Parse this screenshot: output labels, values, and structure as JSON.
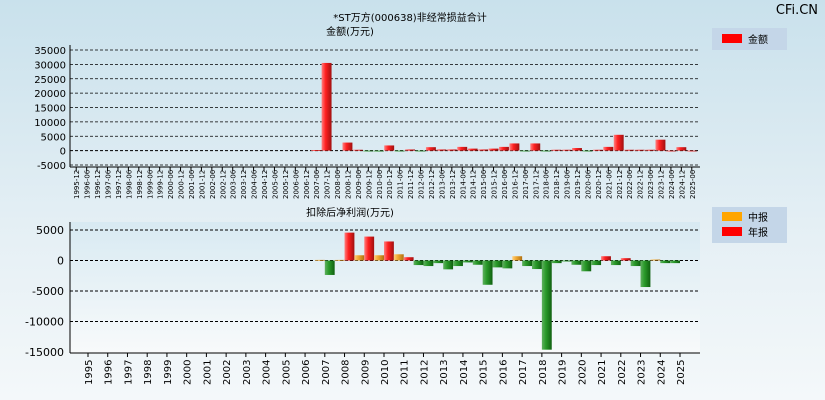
{
  "watermark": "CFi.CN",
  "chart_data": [
    {
      "type": "bar",
      "title": "*ST万方(000638)非经常损益合计",
      "subtitle": "金额(万元)",
      "legend": [
        {
          "name": "金额",
          "color": "#ff0000"
        }
      ],
      "legend_placement": "top-right",
      "ylim": [
        -5000,
        35000
      ],
      "yticks": [
        35000,
        30000,
        25000,
        20000,
        15000,
        10000,
        5000,
        0,
        -5000
      ],
      "categories": [
        "1995-12",
        "1996-06",
        "1996-12",
        "1997-06",
        "1997-12",
        "1998-06",
        "1998-12",
        "1999-06",
        "1999-12",
        "2000-06",
        "2000-12",
        "2001-06",
        "2001-12",
        "2002-06",
        "2002-12",
        "2003-06",
        "2003-12",
        "2004-06",
        "2004-12",
        "2005-06",
        "2005-12",
        "2006-06",
        "2006-12",
        "2007-06",
        "2007-12",
        "2008-06",
        "2008-12",
        "2009-06",
        "2009-12",
        "2010-06",
        "2010-12",
        "2011-06",
        "2011-12",
        "2012-06",
        "2012-12",
        "2013-06",
        "2013-12",
        "2014-06",
        "2014-12",
        "2015-06",
        "2015-12",
        "2016-06",
        "2016-12",
        "2017-06",
        "2017-12",
        "2018-06",
        "2018-12",
        "2019-06",
        "2019-12",
        "2020-06",
        "2020-12",
        "2021-06",
        "2021-12",
        "2022-06",
        "2022-12",
        "2023-06",
        "2023-12",
        "2024-06",
        "2024-12",
        "2025-06"
      ],
      "values": [
        null,
        null,
        null,
        null,
        null,
        null,
        null,
        null,
        null,
        null,
        null,
        null,
        null,
        null,
        null,
        null,
        null,
        null,
        null,
        null,
        null,
        null,
        null,
        200,
        30500,
        null,
        2800,
        300,
        -200,
        -300,
        1800,
        -100,
        400,
        -200,
        1200,
        400,
        400,
        1300,
        700,
        400,
        700,
        1300,
        2500,
        -200,
        2500,
        -100,
        300,
        300,
        900,
        -200,
        300,
        1300,
        5500,
        300,
        300,
        300,
        3800,
        0,
        1200,
        0
      ]
    },
    {
      "type": "bar",
      "title": "扣除后净利润(万元)",
      "legend": [
        {
          "name": "中报",
          "color": "#ffa500"
        },
        {
          "name": "年报",
          "color": "#ff0000"
        }
      ],
      "legend_placement": "top-right",
      "ylim": [
        -15000,
        5000
      ],
      "yticks": [
        5000,
        0,
        -5000,
        -10000,
        -15000
      ],
      "categories": [
        "1995",
        "1996",
        "1997",
        "1998",
        "1999",
        "2000",
        "2001",
        "2002",
        "2003",
        "2004",
        "2005",
        "2006",
        "2007",
        "2008",
        "2009",
        "2010",
        "2011",
        "2012",
        "2013",
        "2014",
        "2015",
        "2016",
        "2017",
        "2018",
        "2019",
        "2020",
        "2021",
        "2022",
        "2023",
        "2024",
        "2025"
      ],
      "series": [
        {
          "name": "中报",
          "values": [
            null,
            null,
            null,
            null,
            null,
            null,
            null,
            null,
            null,
            null,
            null,
            null,
            100,
            100,
            860,
            860,
            1020,
            -750,
            -430,
            -910,
            -700,
            -1130,
            700,
            -1400,
            -430,
            -700,
            -750,
            -750,
            -910,
            160,
            -430
          ]
        },
        {
          "name": "年报",
          "values": [
            null,
            null,
            null,
            null,
            null,
            null,
            null,
            null,
            null,
            null,
            null,
            null,
            -2370,
            4570,
            3920,
            3120,
            540,
            -910,
            -1450,
            -320,
            -3980,
            -1290,
            -910,
            -14620,
            -160,
            -1770,
            700,
            380,
            -4350,
            -430,
            null
          ]
        }
      ]
    }
  ]
}
